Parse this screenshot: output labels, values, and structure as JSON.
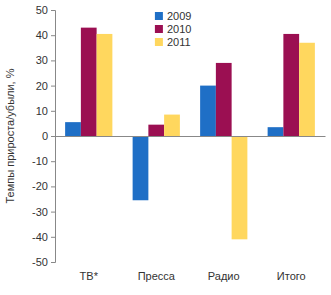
{
  "chart_data": {
    "type": "bar",
    "y_label": "Темпы прироста/убыли, %",
    "categories": [
      "ТВ*",
      "Пресса",
      "Радио",
      "Итого"
    ],
    "series": [
      {
        "name": "2009",
        "color": "#1f6fc6",
        "values": [
          5.5,
          -25.5,
          20,
          3.5
        ]
      },
      {
        "name": "2010",
        "color": "#9b0f52",
        "values": [
          43,
          4.5,
          29,
          40.5
        ]
      },
      {
        "name": "2011",
        "color": "#ffd75e",
        "values": [
          40.5,
          8.5,
          -41,
          37
        ]
      }
    ],
    "ylim": [
      -50,
      50
    ],
    "yticks": [
      -50,
      -40,
      -30,
      -20,
      -10,
      0,
      10,
      20,
      30,
      40,
      50
    ],
    "legend": "top",
    "grid": false
  }
}
